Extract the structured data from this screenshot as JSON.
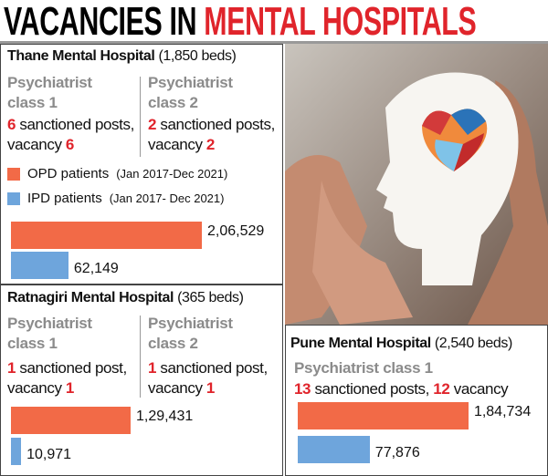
{
  "title": {
    "part1": "VACANCIES IN",
    "part2": "MENTAL HOSPITALS"
  },
  "legend": [
    {
      "name": "OPD patients",
      "period": "(Jan 2017-Dec 2021)",
      "color": "#f26a47"
    },
    {
      "name": "IPD patients",
      "period": "(Jan 2017- Dec 2021)",
      "color": "#6ea5dc"
    }
  ],
  "hospitals": [
    {
      "name": "Thane Mental Hospital",
      "beds": "(1,850 beds)",
      "posts": [
        {
          "role": "Psychiatrist class 1",
          "sanctioned": 6,
          "text": "sanctioned posts, vacancy",
          "vacancy": 6
        },
        {
          "role": "Psychiatrist class 2",
          "sanctioned": 2,
          "text": "sanctioned posts, vacancy",
          "vacancy": 2
        }
      ],
      "values": [
        206529,
        62149
      ],
      "value_labels": [
        "2,06,529",
        "62,149"
      ]
    },
    {
      "name": "Ratnagiri Mental Hospital",
      "beds": "(365 beds)",
      "posts": [
        {
          "role": "Psychiatrist class 1",
          "sanctioned": 1,
          "text": "sanctioned post, vacancy",
          "vacancy": 1
        },
        {
          "role": "Psychiatrist class 2",
          "sanctioned": 1,
          "text": "sanctioned post, vacancy",
          "vacancy": 1
        }
      ],
      "values": [
        129431,
        10971
      ],
      "value_labels": [
        "1,29,431",
        "10,971"
      ]
    },
    {
      "name": "Pune Mental Hospital",
      "beds": "(2,540 beds)",
      "posts": [
        {
          "role": "Psychiatrist class 1",
          "sanctioned": 13,
          "text": "sanctioned posts,",
          "vacancy": 12,
          "after": "vacancy"
        }
      ],
      "values": [
        184734,
        77876
      ],
      "value_labels": [
        "1,84,734",
        "77,876"
      ]
    }
  ]
}
